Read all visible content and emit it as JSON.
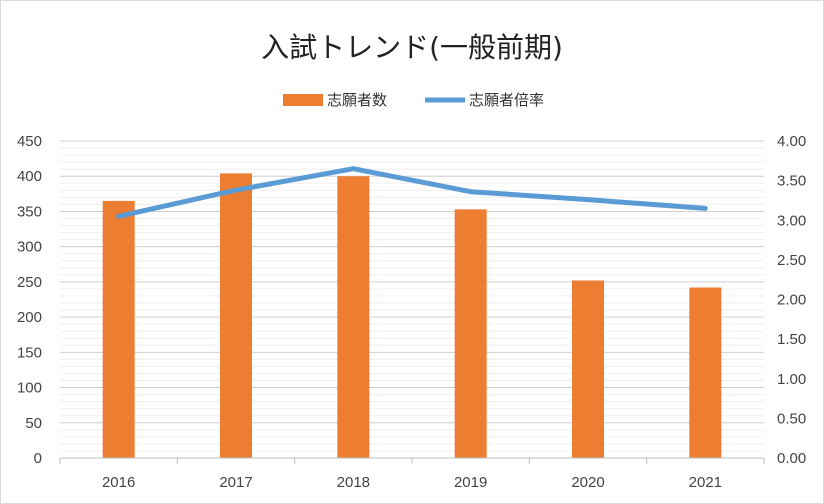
{
  "chart_data": {
    "type": "bar",
    "title": "入試トレンド(一般前期)",
    "categories": [
      "2016",
      "2017",
      "2018",
      "2019",
      "2020",
      "2021"
    ],
    "series": [
      {
        "name": "志願者数",
        "type": "bar",
        "axis": "left",
        "color": "#ED7D31",
        "values": [
          365,
          404,
          400,
          353,
          252,
          242
        ]
      },
      {
        "name": "志願者倍率",
        "type": "line",
        "axis": "right",
        "color": "#5B9BD5",
        "values": [
          3.05,
          3.38,
          3.65,
          3.36,
          3.26,
          3.15
        ]
      }
    ],
    "ylim_left": [
      0,
      450
    ],
    "yticks_left": [
      "0",
      "50",
      "100",
      "150",
      "200",
      "250",
      "300",
      "350",
      "400",
      "450"
    ],
    "ylim_right": [
      0,
      4
    ],
    "yticks_right": [
      "0.00",
      "0.50",
      "1.00",
      "1.50",
      "2.00",
      "2.50",
      "3.00",
      "3.50",
      "4.00"
    ],
    "grid": true,
    "legend_position": "top"
  }
}
